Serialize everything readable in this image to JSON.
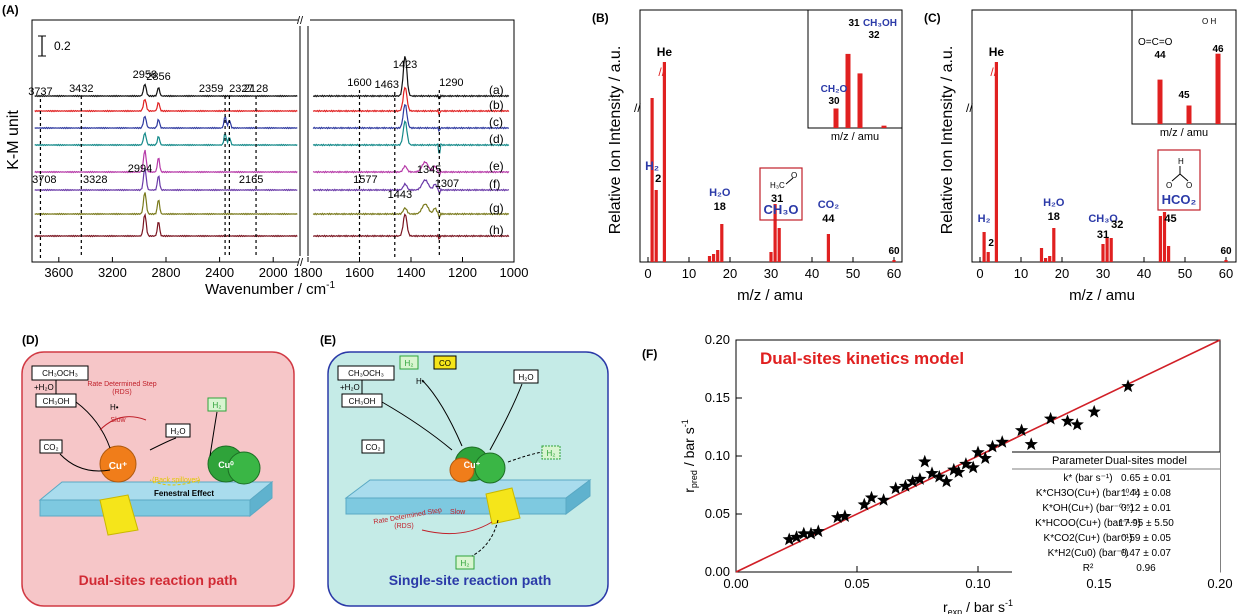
{
  "panel_labels": {
    "a": "(A)",
    "b": "(B)",
    "c": "(C)",
    "d": "(D)",
    "e": "(E)",
    "f": "(F)"
  },
  "colors": {
    "red": "#e02020",
    "blue": "#2b3aa8",
    "pink_bg": "#f6c6c8",
    "teal_bg": "#c5ebe7",
    "surface": "#7ec9e0",
    "cu_orange": "#f07d1a",
    "green": "#2fa33a",
    "yellow": "#f5e51a"
  },
  "chart_data": [
    {
      "id": "A",
      "type": "line",
      "xlabel": "Wavenumber / cm",
      "xlabel_sup": "-1",
      "ylabel": "K-M unit",
      "scalebar_label": "0.2",
      "ticks_left": [
        "3600",
        "3200",
        "2800",
        "2400",
        "2000"
      ],
      "ticks_right": [
        "1800",
        "1600",
        "1400",
        "1200",
        "1000"
      ],
      "xlim_left": [
        3800,
        1800
      ],
      "xlim_right": [
        1800,
        1000
      ],
      "curve_labels": [
        "(a)",
        "(b)",
        "(c)",
        "(d)",
        "(e)",
        "(f)",
        "(g)",
        "(h)"
      ],
      "curve_colors": [
        "#111111",
        "#e02020",
        "#2f3aa0",
        "#148a8a",
        "#b63aa8",
        "#6a3aa8",
        "#7a7a1c",
        "#7a1420"
      ],
      "peak_labels_top": [
        "3737",
        "3432",
        "2958",
        "2856",
        "2359",
        "2327",
        "2128",
        "1600",
        "1463",
        "1423",
        "1290"
      ],
      "peak_labels_bottom": [
        "3708",
        "3328",
        "2994",
        "2165",
        "1577",
        "1443",
        "1345",
        "1307"
      ]
    },
    {
      "id": "B",
      "type": "bar",
      "xlabel": "m/z / amu",
      "ylabel": "Relative Ion Intensity / a.u.",
      "xlim": [
        0,
        60
      ],
      "ticks": [
        "0",
        "10",
        "20",
        "30",
        "40",
        "50",
        "60"
      ],
      "x": [
        1,
        2,
        4,
        15,
        16,
        17,
        18,
        30,
        31,
        32,
        44,
        60
      ],
      "values": [
        0.82,
        0.36,
        1.0,
        0.03,
        0.04,
        0.06,
        0.19,
        0.05,
        0.29,
        0.17,
        0.14,
        0.01
      ],
      "labels": [
        {
          "text": "He"
        },
        {
          "text": "H₂"
        },
        {
          "text": "2"
        },
        {
          "text": "H₂O"
        },
        {
          "text": "18"
        },
        {
          "text": "CO₂"
        },
        {
          "text": "44"
        },
        {
          "text": "60"
        },
        {
          "text": "CH₃O"
        },
        {
          "text": "31"
        }
      ],
      "inset": {
        "xlabel": "m/z / amu",
        "x": [
          30,
          31,
          32,
          34
        ],
        "values": [
          0.25,
          0.95,
          0.7,
          0.03
        ],
        "labels": [
          {
            "text": "CH₂O"
          },
          {
            "text": "30"
          },
          {
            "text": "31"
          },
          {
            "text": "CH₃OH"
          },
          {
            "text": "32"
          }
        ]
      }
    },
    {
      "id": "C",
      "type": "bar",
      "xlabel": "m/z / amu",
      "ylabel": "Relative Ion Intensity / a.u.",
      "xlim": [
        0,
        60
      ],
      "ticks": [
        "0",
        "10",
        "20",
        "30",
        "40",
        "50",
        "60"
      ],
      "x": [
        1,
        2,
        4,
        15,
        16,
        17,
        18,
        30,
        31,
        32,
        44,
        45,
        46,
        60
      ],
      "values": [
        0.15,
        0.05,
        1.0,
        0.07,
        0.02,
        0.03,
        0.17,
        0.09,
        0.12,
        0.12,
        0.23,
        0.25,
        0.08,
        0.01
      ],
      "labels": [
        {
          "text": "He"
        },
        {
          "text": "H₂"
        },
        {
          "text": "2"
        },
        {
          "text": "H₂O"
        },
        {
          "text": "18"
        },
        {
          "text": "CH₃O"
        },
        {
          "text": "31"
        },
        {
          "text": "32"
        },
        {
          "text": "HCO₂"
        },
        {
          "text": "45"
        },
        {
          "text": "60"
        }
      ],
      "inset": {
        "xlabel": "m/z / amu",
        "x": [
          44,
          45,
          46
        ],
        "values": [
          0.6,
          0.25,
          0.95
        ],
        "labels": [
          {
            "text": "44"
          },
          {
            "text": "45"
          },
          {
            "text": "46"
          }
        ]
      }
    },
    {
      "id": "F",
      "type": "scatter",
      "title": "Dual-sites kinetics model",
      "xlabel": "r",
      "xlabel_sub": "exp",
      "xlabel_unit": " / bar s",
      "xlabel_sup": "-1",
      "ylabel": "r",
      "ylabel_sub": "pred",
      "ylabel_unit": " / bar s",
      "ylabel_sup": "-1",
      "xlim": [
        0,
        0.2
      ],
      "ylim": [
        0,
        0.2
      ],
      "xticks": [
        "0.00",
        "0.05",
        "0.10",
        "0.15",
        "0.20"
      ],
      "yticks": [
        "0.00",
        "0.05",
        "0.10",
        "0.15",
        "0.20"
      ],
      "points": [
        [
          0.022,
          0.028
        ],
        [
          0.025,
          0.03
        ],
        [
          0.028,
          0.033
        ],
        [
          0.031,
          0.033
        ],
        [
          0.034,
          0.035
        ],
        [
          0.042,
          0.047
        ],
        [
          0.045,
          0.048
        ],
        [
          0.053,
          0.058
        ],
        [
          0.056,
          0.064
        ],
        [
          0.061,
          0.062
        ],
        [
          0.066,
          0.072
        ],
        [
          0.07,
          0.074
        ],
        [
          0.073,
          0.078
        ],
        [
          0.076,
          0.08
        ],
        [
          0.078,
          0.095
        ],
        [
          0.081,
          0.085
        ],
        [
          0.084,
          0.082
        ],
        [
          0.087,
          0.078
        ],
        [
          0.09,
          0.088
        ],
        [
          0.092,
          0.086
        ],
        [
          0.095,
          0.093
        ],
        [
          0.098,
          0.09
        ],
        [
          0.1,
          0.103
        ],
        [
          0.103,
          0.098
        ],
        [
          0.106,
          0.108
        ],
        [
          0.11,
          0.112
        ],
        [
          0.118,
          0.122
        ],
        [
          0.122,
          0.11
        ],
        [
          0.13,
          0.132
        ],
        [
          0.137,
          0.13
        ],
        [
          0.141,
          0.127
        ],
        [
          0.148,
          0.138
        ],
        [
          0.162,
          0.16
        ]
      ],
      "fit_line": [
        [
          0,
          0
        ],
        [
          0.2,
          0.2
        ]
      ],
      "table": {
        "headers": [
          "Parameter",
          "Dual-sites model"
        ],
        "rows": [
          [
            "k* (bar s⁻¹)",
            "0.65 ± 0.01"
          ],
          [
            "K*CH3O(Cu+) (bar⁻⁰⋅⁵)",
            "1.44 ± 0.08"
          ],
          [
            "K*OH(Cu+) (bar⁻⁰⋅⁵)",
            "0.12 ± 0.01"
          ],
          [
            "K*HCOO(Cu+) (bar⁻¹⋅⁵)",
            "17.95 ± 5.50"
          ],
          [
            "K*CO2(Cu+) (bar⁻¹)",
            "0.59 ± 0.05"
          ],
          [
            "K*H2(Cu0) (bar⁻¹)",
            "0.47 ± 0.07"
          ],
          [
            "R²",
            "0.96"
          ]
        ]
      }
    }
  ],
  "scheme_d": {
    "title": "Dual-sites reaction path",
    "labels": {
      "reactant": "CH₃OCH₃",
      "water": "+H₂O",
      "methanol": "CH₃OH",
      "h2o": "H₂O",
      "co2": "CO₂",
      "h2": "H₂",
      "rds": "Rate Determined Step",
      "rds2": "(RDS)",
      "slow": "Slow",
      "back": "(Back spillover)",
      "fenestral": "Fenestral Effect",
      "cu": "Cu⁺",
      "cu0": "Cu⁰",
      "hplus": "H•"
    }
  },
  "scheme_e": {
    "title": "Single-site reaction path",
    "labels": {
      "reactant": "CH₃OCH₃",
      "water": "+H₂O",
      "methanol": "CH₃OH",
      "h2o": "H₂O",
      "co2": "CO₂",
      "h2": "H₂",
      "co": "CO",
      "rds": "Rate Determined Step",
      "rds2": "(RDS)",
      "slow": "Slow",
      "cu": "Cu⁺",
      "hplus": "H•"
    }
  }
}
